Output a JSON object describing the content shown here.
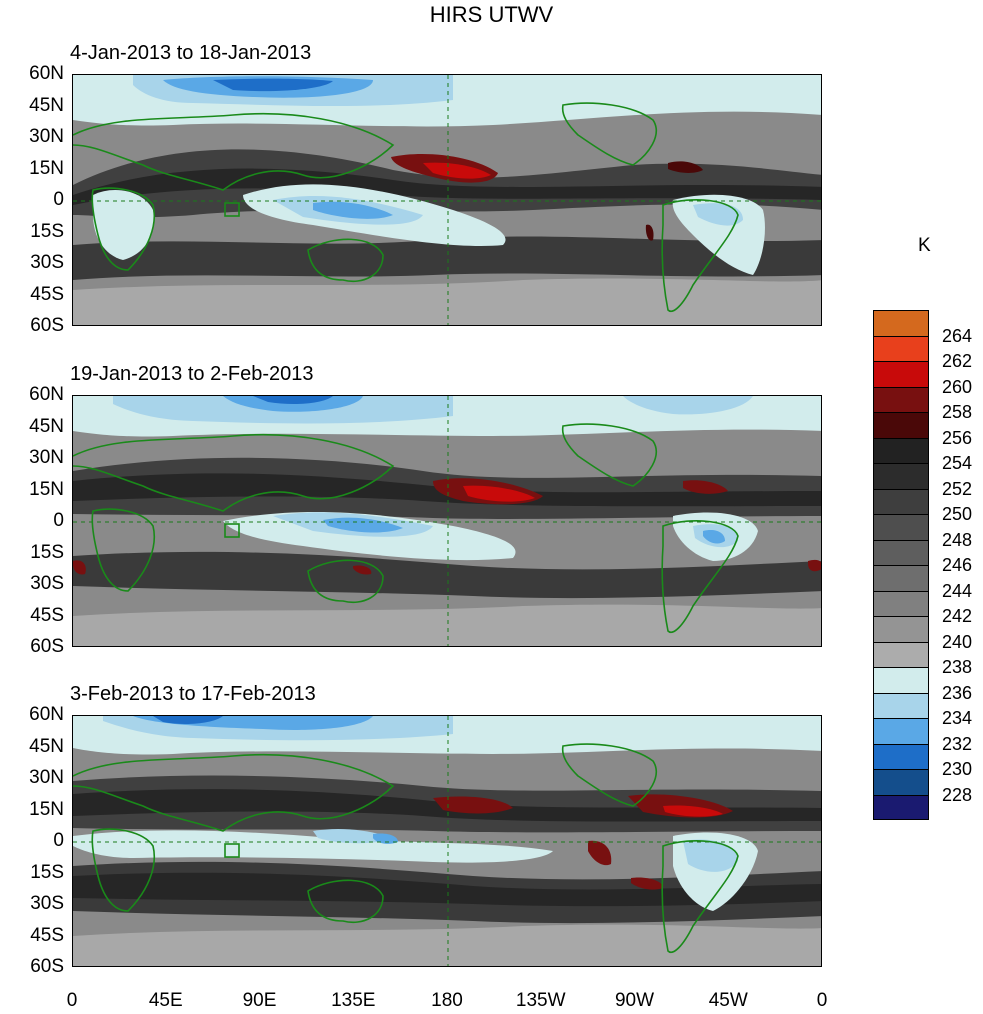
{
  "title": "HIRS UTWV",
  "panels": [
    {
      "label": "4-Jan-2013 to 18-Jan-2013"
    },
    {
      "label": "19-Jan-2013 to 2-Feb-2013"
    },
    {
      "label": "3-Feb-2013 to 17-Feb-2013"
    }
  ],
  "lat_labels": [
    "60N",
    "45N",
    "30N",
    "15N",
    "0",
    "15S",
    "30S",
    "45S",
    "60S"
  ],
  "lon_labels": [
    "0",
    "45E",
    "90E",
    "135E",
    "180",
    "135W",
    "90W",
    "45W",
    "0"
  ],
  "colorbar": {
    "unit": "K",
    "labels": [
      "264",
      "262",
      "260",
      "258",
      "256",
      "254",
      "252",
      "250",
      "248",
      "246",
      "244",
      "242",
      "240",
      "238",
      "236",
      "234",
      "232",
      "230",
      "228"
    ],
    "colors": [
      "#d4691e",
      "#e8401c",
      "#c80a0a",
      "#781010",
      "#4a0808",
      "#222222",
      "#2c2c2c",
      "#3e3e3e",
      "#4e4e4e",
      "#5e5e5e",
      "#6e6e6e",
      "#808080",
      "#949494",
      "#acacac",
      "#d2ecec",
      "#a8d4ea",
      "#5aa8e6",
      "#1e6ec8",
      "#144e8c",
      "#1a1a70"
    ]
  }
}
